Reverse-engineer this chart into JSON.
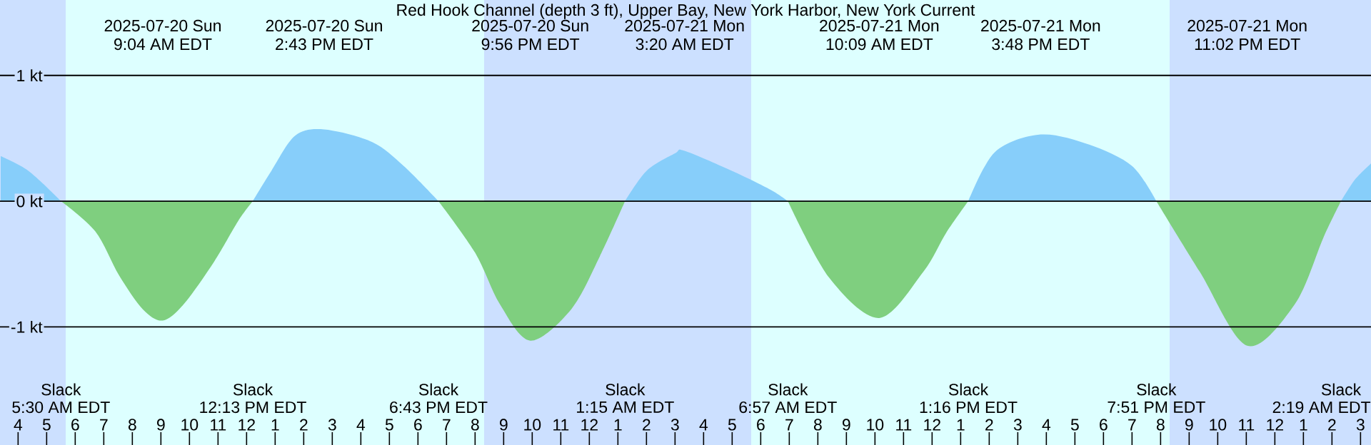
{
  "chart_data": {
    "type": "area",
    "title": "Red Hook Channel (depth 3 ft), Upper Bay, New York Harbor, New York Current",
    "series": [
      {
        "color": "#87cefa",
        "x": [
          "2025-07-20T03:22",
          "2025-07-20T04:22",
          "2025-07-20T05:30",
          "2025-07-20T09:04",
          "2025-07-20T12:13",
          "2025-07-20T12:52",
          "2025-07-20T13:42",
          "2025-07-20T14:43",
          "2025-07-20T16:24",
          "2025-07-20T17:30",
          "2025-07-20T18:43",
          "2025-07-20T21:56",
          "2025-07-21T01:15",
          "2025-07-21T02:00",
          "2025-07-21T03:00",
          "2025-07-21T03:20",
          "2025-07-21T05:00",
          "2025-07-21T06:21",
          "2025-07-21T06:57",
          "2025-07-21T10:09",
          "2025-07-21T13:16",
          "2025-07-21T14:12",
          "2025-07-21T15:48",
          "2025-07-21T17:30",
          "2025-07-21T19:00",
          "2025-07-21T19:51",
          "2025-07-21T23:02",
          "2025-07-22T02:19",
          "2025-07-22T02:48",
          "2025-07-22T03:22"
        ],
        "values": [
          0.36,
          0.24,
          0,
          null,
          0,
          0.24,
          0.52,
          0.57,
          0.47,
          0.28,
          0,
          null,
          0,
          0.24,
          0.38,
          0.4,
          0.24,
          0.09,
          0,
          null,
          0,
          0.39,
          0.53,
          0.45,
          0.28,
          0,
          null,
          0,
          0.17,
          0.3
        ]
      },
      {
        "color": "#7fcf7f",
        "x": [
          "2025-07-20T05:30",
          "2025-07-20T06:42",
          "2025-07-20T07:32",
          "2025-07-20T08:22",
          "2025-07-20T09:04",
          "2025-07-20T09:48",
          "2025-07-20T10:52",
          "2025-07-20T11:42",
          "2025-07-20T12:13",
          "2025-07-20T14:43",
          "2025-07-20T18:43",
          "2025-07-20T20:00",
          "2025-07-20T20:52",
          "2025-07-20T21:56",
          "2025-07-20T23:22",
          "2025-07-21T00:22",
          "2025-07-21T01:15",
          "2025-07-21T03:20",
          "2025-07-21T06:57",
          "2025-07-21T08:24",
          "2025-07-21T10:09",
          "2025-07-21T11:42",
          "2025-07-21T12:30",
          "2025-07-21T13:16",
          "2025-07-21T15:48",
          "2025-07-21T19:51",
          "2025-07-21T21:22",
          "2025-07-21T23:02",
          "2025-07-22T00:42",
          "2025-07-22T01:42",
          "2025-07-22T02:19"
        ],
        "values": [
          0,
          -0.24,
          -0.59,
          -0.86,
          -0.95,
          -0.82,
          -0.48,
          -0.16,
          0,
          null,
          0,
          -0.41,
          -0.82,
          -1.11,
          -0.86,
          -0.44,
          0,
          null,
          0,
          -0.61,
          -0.93,
          -0.56,
          -0.25,
          0,
          null,
          0,
          -0.56,
          -1.15,
          -0.82,
          -0.29,
          0
        ]
      }
    ],
    "xlim": [
      "2025-07-20T03:22",
      "2025-07-22T03:22"
    ],
    "ylim": [
      -1.94,
      1.6
    ],
    "yticks": [
      {
        "value": -1,
        "label": "-1 kt"
      },
      {
        "value": 0,
        "label": "0 kt"
      },
      {
        "value": 1,
        "label": "1 kt"
      }
    ],
    "xticks": [
      {
        "value": "2025-07-20T04:00",
        "label": "4"
      },
      {
        "value": "2025-07-20T05:00",
        "label": "5"
      },
      {
        "value": "2025-07-20T06:00",
        "label": "6"
      },
      {
        "value": "2025-07-20T07:00",
        "label": "7"
      },
      {
        "value": "2025-07-20T08:00",
        "label": "8"
      },
      {
        "value": "2025-07-20T09:00",
        "label": "9"
      },
      {
        "value": "2025-07-20T10:00",
        "label": "10"
      },
      {
        "value": "2025-07-20T11:00",
        "label": "11"
      },
      {
        "value": "2025-07-20T12:00",
        "label": "12"
      },
      {
        "value": "2025-07-20T13:00",
        "label": "1"
      },
      {
        "value": "2025-07-20T14:00",
        "label": "2"
      },
      {
        "value": "2025-07-20T15:00",
        "label": "3"
      },
      {
        "value": "2025-07-20T16:00",
        "label": "4"
      },
      {
        "value": "2025-07-20T17:00",
        "label": "5"
      },
      {
        "value": "2025-07-20T18:00",
        "label": "6"
      },
      {
        "value": "2025-07-20T19:00",
        "label": "7"
      },
      {
        "value": "2025-07-20T20:00",
        "label": "8"
      },
      {
        "value": "2025-07-20T21:00",
        "label": "9"
      },
      {
        "value": "2025-07-20T22:00",
        "label": "10"
      },
      {
        "value": "2025-07-20T23:00",
        "label": "11"
      },
      {
        "value": "2025-07-21T00:00",
        "label": "12"
      },
      {
        "value": "2025-07-21T01:00",
        "label": "1"
      },
      {
        "value": "2025-07-21T02:00",
        "label": "2"
      },
      {
        "value": "2025-07-21T03:00",
        "label": "3"
      },
      {
        "value": "2025-07-21T04:00",
        "label": "4"
      },
      {
        "value": "2025-07-21T05:00",
        "label": "5"
      },
      {
        "value": "2025-07-21T06:00",
        "label": "6"
      },
      {
        "value": "2025-07-21T07:00",
        "label": "7"
      },
      {
        "value": "2025-07-21T08:00",
        "label": "8"
      },
      {
        "value": "2025-07-21T09:00",
        "label": "9"
      },
      {
        "value": "2025-07-21T10:00",
        "label": "10"
      },
      {
        "value": "2025-07-21T11:00",
        "label": "11"
      },
      {
        "value": "2025-07-21T12:00",
        "label": "12"
      },
      {
        "value": "2025-07-21T13:00",
        "label": "1"
      },
      {
        "value": "2025-07-21T14:00",
        "label": "2"
      },
      {
        "value": "2025-07-21T15:00",
        "label": "3"
      },
      {
        "value": "2025-07-21T16:00",
        "label": "4"
      },
      {
        "value": "2025-07-21T17:00",
        "label": "5"
      },
      {
        "value": "2025-07-21T18:00",
        "label": "6"
      },
      {
        "value": "2025-07-21T19:00",
        "label": "7"
      },
      {
        "value": "2025-07-21T20:00",
        "label": "8"
      },
      {
        "value": "2025-07-21T21:00",
        "label": "9"
      },
      {
        "value": "2025-07-21T22:00",
        "label": "10"
      },
      {
        "value": "2025-07-21T23:00",
        "label": "11"
      },
      {
        "value": "2025-07-22T00:00",
        "label": "12"
      },
      {
        "value": "2025-07-22T01:00",
        "label": "1"
      },
      {
        "value": "2025-07-22T02:00",
        "label": "2"
      },
      {
        "value": "2025-07-22T03:00",
        "label": "3"
      }
    ],
    "grid": "y",
    "bands": [
      {
        "axis": "x",
        "from": "2025-07-20T03:22",
        "to": "2025-07-20T05:40",
        "color": "#cce0ff"
      },
      {
        "axis": "x",
        "from": "2025-07-20T05:40",
        "to": "2025-07-20T20:19",
        "color": "#ddffff"
      },
      {
        "axis": "x",
        "from": "2025-07-20T20:19",
        "to": "2025-07-21T05:40",
        "color": "#cce0ff"
      },
      {
        "axis": "x",
        "from": "2025-07-21T05:40",
        "to": "2025-07-21T20:19",
        "color": "#ddffff"
      },
      {
        "axis": "x",
        "from": "2025-07-21T20:19",
        "to": "2025-07-22T03:22",
        "color": "#cce0ff"
      }
    ],
    "annotations": [
      "Slack",
      "5:30 AM EDT",
      "2025-07-20 Sun",
      "9:04 AM EDT",
      "Slack",
      "12:13 PM EDT",
      "2025-07-20 Sun",
      "2:43 PM EDT",
      "Slack",
      "6:43 PM EDT",
      "2025-07-20 Sun",
      "9:56 PM EDT",
      "Slack",
      "1:15 AM EDT",
      "2025-07-21 Mon",
      "3:20 AM EDT",
      "Slack",
      "6:57 AM EDT",
      "2025-07-21 Mon",
      "10:09 AM EDT",
      "Slack",
      "1:16 PM EDT",
      "2025-07-21 Mon",
      "3:48 PM EDT",
      "Slack",
      "7:51 PM EDT",
      "2025-07-21 Mon",
      "11:02 PM EDT",
      "Slack",
      "2:19 AM EDT"
    ]
  }
}
